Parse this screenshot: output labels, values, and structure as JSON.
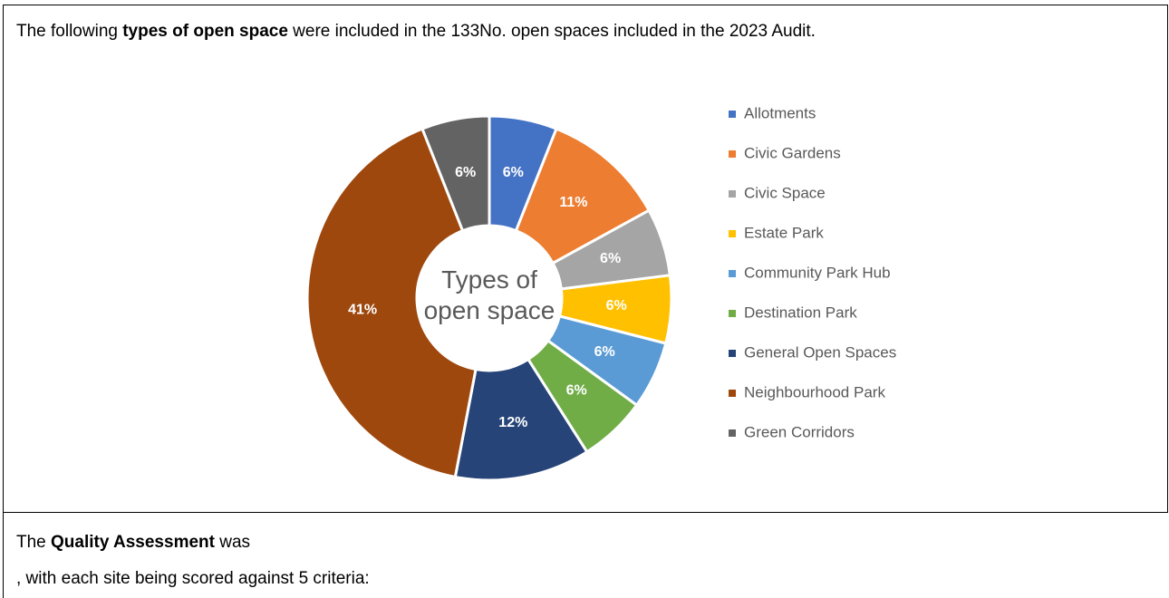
{
  "intro": [
    "The following ",
    "types of open space",
    " were included in the 133No. open spaces included in the 2023 Audit."
  ],
  "chart_data": {
    "type": "donut",
    "title": "Types of open space",
    "categories": [
      "Allotments",
      "Civic Gardens",
      "Civic Space",
      "Estate Park",
      "Community Park Hub",
      "Destination Park",
      "General Open Spaces",
      "Neighbourhood Park",
      "Green Corridors"
    ],
    "values": [
      6,
      11,
      6,
      6,
      6,
      6,
      12,
      41,
      6
    ],
    "value_labels": [
      "6%",
      "11%",
      "6%",
      "6%",
      "6%",
      "6%",
      "12%",
      "41%",
      "6%"
    ],
    "colors": [
      "#4472c4",
      "#ed7d31",
      "#a5a5a5",
      "#ffc000",
      "#5b9bd5",
      "#70ad47",
      "#264478",
      "#9e480e",
      "#636363"
    ],
    "legend": "right"
  },
  "quality": [
    "The ",
    "Quality Assessment",
    " was"
  ],
  "criteria": ", with each site being scored against 5 criteria:"
}
